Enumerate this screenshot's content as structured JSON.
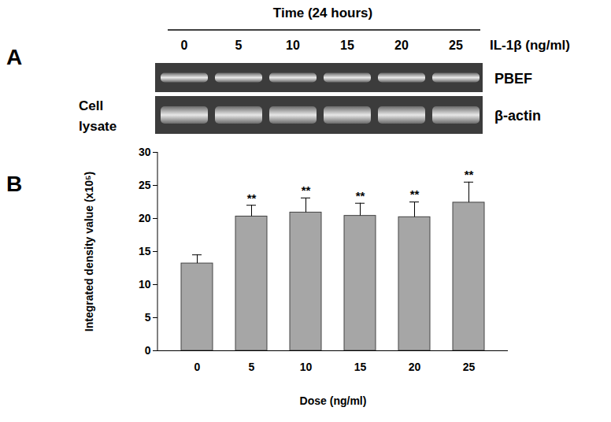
{
  "panel_labels": [
    "A",
    "B"
  ],
  "blot": {
    "header": "Time (24 hours)",
    "treatment": "IL-1β (ng/ml)",
    "lanes": [
      "0",
      "5",
      "10",
      "15",
      "20",
      "25"
    ],
    "sample": [
      "Cell",
      "lysate"
    ],
    "bands": [
      "PBEF",
      "β-actin"
    ]
  },
  "chart_data": {
    "type": "bar",
    "x_label": "Dose (ng/ml)",
    "y_label": "Integrated density value (x10⁵)",
    "categories": [
      "0",
      "5",
      "10",
      "15",
      "20",
      "25"
    ],
    "values": [
      13.2,
      20.3,
      20.9,
      20.4,
      20.2,
      22.4
    ],
    "errors": [
      1.3,
      1.7,
      2.2,
      1.9,
      2.3,
      3.1
    ],
    "annotations": [
      {
        "category": "5",
        "text": "**"
      },
      {
        "category": "10",
        "text": "**"
      },
      {
        "category": "15",
        "text": "**"
      },
      {
        "category": "20",
        "text": "**"
      },
      {
        "category": "25",
        "text": "**"
      }
    ],
    "color": "#a6a6a6",
    "ylim": [
      0,
      30
    ],
    "yticks": [
      0,
      5,
      10,
      15,
      20,
      25,
      30
    ],
    "grid": false
  }
}
